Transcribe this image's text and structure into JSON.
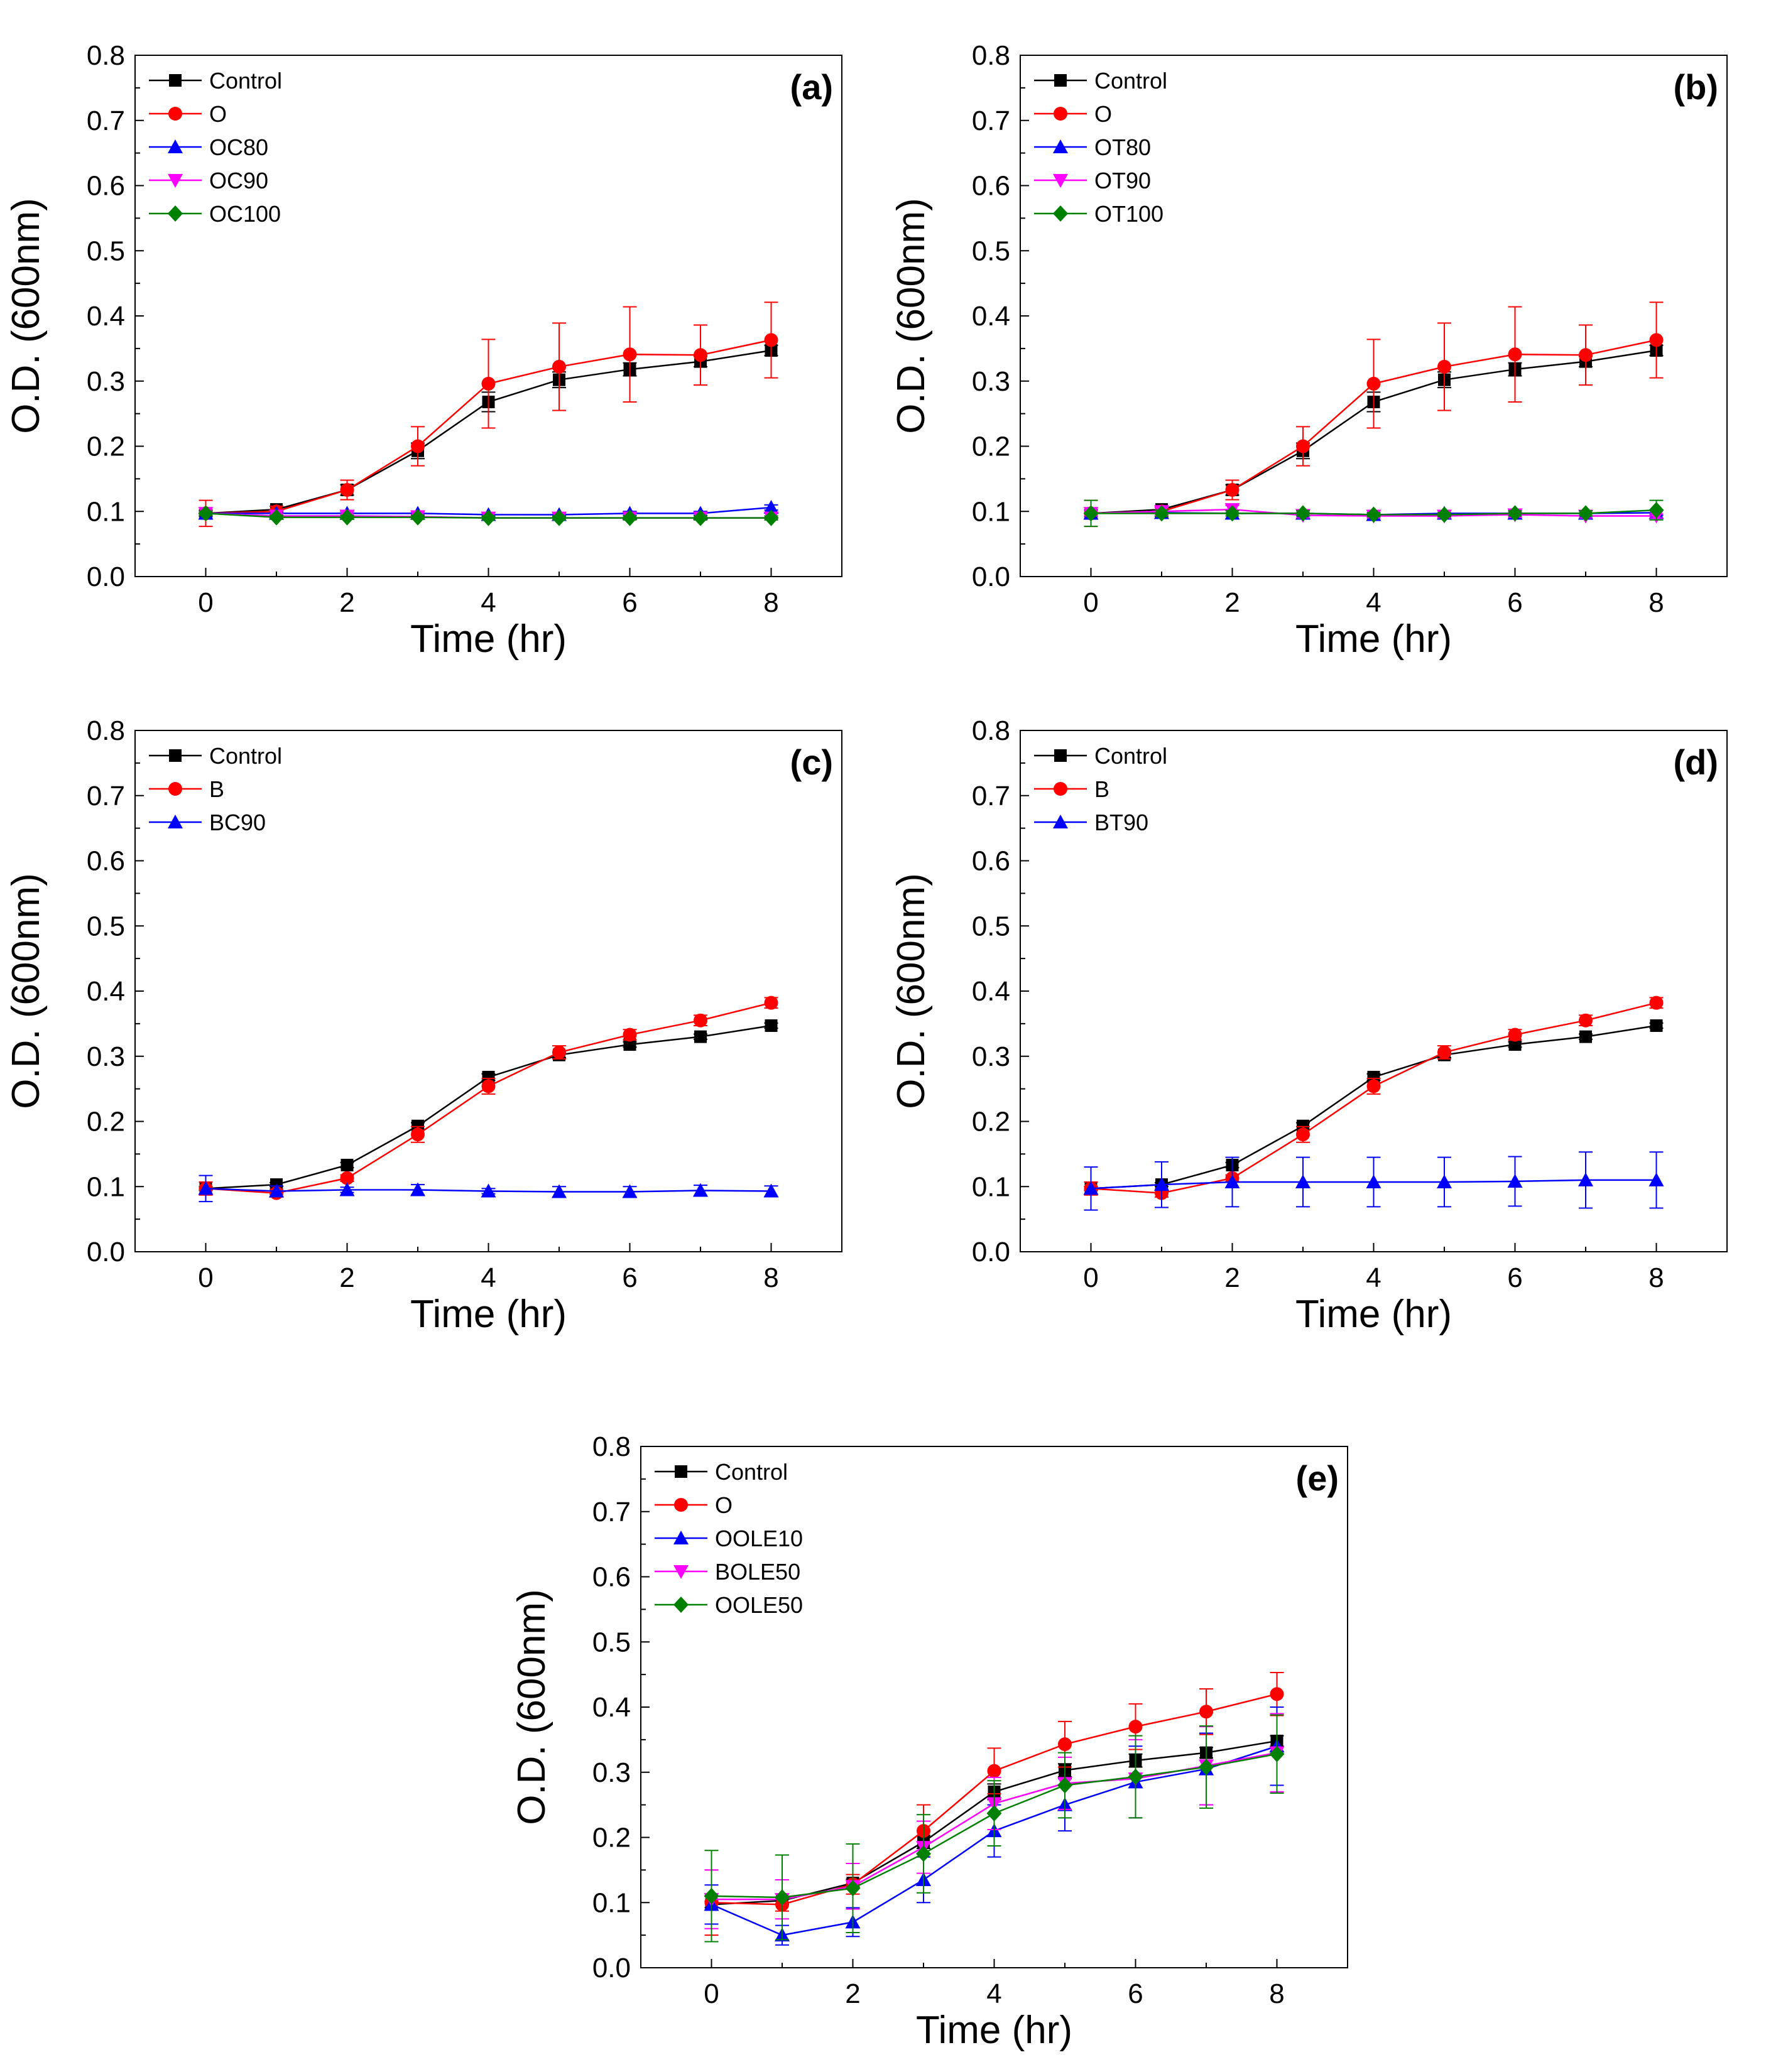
{
  "colors": {
    "Control": "#000000",
    "O": "#ff0000",
    "B": "#ff0000",
    "blue": "#0000ff",
    "magenta": "#ff00ff",
    "green": "#008000"
  },
  "chart_data": [
    {
      "type": "line",
      "panel_label": "(a)",
      "xlabel": "Time (hr)",
      "ylabel": "O.D. (600nm)",
      "xlim": [
        -1,
        9
      ],
      "ylim": [
        0.0,
        0.8
      ],
      "xticks": [
        "0",
        "2",
        "4",
        "6",
        "8"
      ],
      "yticks": [
        "0.0",
        "0.1",
        "0.2",
        "0.3",
        "0.4",
        "0.5",
        "0.6",
        "0.7",
        "0.8"
      ],
      "legend_position": "top-left",
      "x": [
        0,
        1,
        2,
        3,
        4,
        5,
        6,
        7,
        8
      ],
      "series": [
        {
          "name": "Control",
          "color": "#000000",
          "marker": "square",
          "values": [
            0.097,
            0.103,
            0.133,
            0.193,
            0.268,
            0.302,
            0.318,
            0.33,
            0.347
          ],
          "errors": [
            0.005,
            0.005,
            0.008,
            0.012,
            0.015,
            0.012,
            0.01,
            0.008,
            0.008
          ]
        },
        {
          "name": "O",
          "color": "#ff0000",
          "marker": "circle",
          "values": [
            0.097,
            0.1,
            0.133,
            0.2,
            0.296,
            0.322,
            0.341,
            0.34,
            0.363
          ],
          "errors": [
            0.02,
            0.008,
            0.015,
            0.03,
            0.068,
            0.067,
            0.073,
            0.046,
            0.058
          ]
        },
        {
          "name": "OC80",
          "color": "#0000ff",
          "marker": "triangle-up",
          "values": [
            0.097,
            0.097,
            0.097,
            0.097,
            0.095,
            0.095,
            0.097,
            0.097,
            0.106
          ],
          "errors": [
            0.003,
            0.003,
            0.003,
            0.003,
            0.003,
            0.003,
            0.003,
            0.003,
            0.004
          ]
        },
        {
          "name": "OC90",
          "color": "#ff00ff",
          "marker": "triangle-down",
          "values": [
            0.097,
            0.093,
            0.093,
            0.092,
            0.09,
            0.09,
            0.09,
            0.09,
            0.09
          ],
          "errors": [
            0.003,
            0.003,
            0.003,
            0.003,
            0.003,
            0.003,
            0.003,
            0.003,
            0.003
          ]
        },
        {
          "name": "OC100",
          "color": "#008000",
          "marker": "diamond",
          "values": [
            0.097,
            0.091,
            0.091,
            0.091,
            0.09,
            0.09,
            0.09,
            0.09,
            0.09
          ],
          "errors": [
            0.003,
            0.003,
            0.003,
            0.003,
            0.003,
            0.003,
            0.003,
            0.003,
            0.003
          ]
        }
      ]
    },
    {
      "type": "line",
      "panel_label": "(b)",
      "xlabel": "Time (hr)",
      "ylabel": "O.D. (600nm)",
      "xlim": [
        -1,
        9
      ],
      "ylim": [
        0.0,
        0.8
      ],
      "xticks": [
        "0",
        "2",
        "4",
        "6",
        "8"
      ],
      "yticks": [
        "0.0",
        "0.1",
        "0.2",
        "0.3",
        "0.4",
        "0.5",
        "0.6",
        "0.7",
        "0.8"
      ],
      "legend_position": "top-left",
      "x": [
        0,
        1,
        2,
        3,
        4,
        5,
        6,
        7,
        8
      ],
      "series": [
        {
          "name": "Control",
          "color": "#000000",
          "marker": "square",
          "values": [
            0.097,
            0.103,
            0.133,
            0.193,
            0.268,
            0.302,
            0.318,
            0.33,
            0.347
          ],
          "errors": [
            0.005,
            0.005,
            0.008,
            0.012,
            0.015,
            0.012,
            0.01,
            0.008,
            0.008
          ]
        },
        {
          "name": "O",
          "color": "#ff0000",
          "marker": "circle",
          "values": [
            0.097,
            0.1,
            0.133,
            0.2,
            0.296,
            0.322,
            0.341,
            0.34,
            0.363
          ],
          "errors": [
            0.02,
            0.008,
            0.015,
            0.03,
            0.068,
            0.067,
            0.073,
            0.046,
            0.058
          ]
        },
        {
          "name": "OT80",
          "color": "#0000ff",
          "marker": "triangle-up",
          "values": [
            0.097,
            0.098,
            0.097,
            0.097,
            0.095,
            0.097,
            0.097,
            0.097,
            0.098
          ],
          "errors": [
            0.004,
            0.004,
            0.004,
            0.004,
            0.003,
            0.004,
            0.004,
            0.004,
            0.004
          ]
        },
        {
          "name": "OT90",
          "color": "#ff00ff",
          "marker": "triangle-down",
          "values": [
            0.097,
            0.1,
            0.103,
            0.094,
            0.093,
            0.093,
            0.095,
            0.093,
            0.093
          ],
          "errors": [
            0.004,
            0.006,
            0.006,
            0.004,
            0.003,
            0.003,
            0.004,
            0.003,
            0.003
          ]
        },
        {
          "name": "OT100",
          "color": "#008000",
          "marker": "diamond",
          "values": [
            0.097,
            0.097,
            0.097,
            0.097,
            0.095,
            0.095,
            0.097,
            0.097,
            0.102
          ],
          "errors": [
            0.02,
            0.005,
            0.004,
            0.004,
            0.003,
            0.003,
            0.004,
            0.004,
            0.015
          ]
        }
      ]
    },
    {
      "type": "line",
      "panel_label": "(c)",
      "xlabel": "Time (hr)",
      "ylabel": "O.D. (600nm)",
      "xlim": [
        -1,
        9
      ],
      "ylim": [
        0.0,
        0.8
      ],
      "xticks": [
        "0",
        "2",
        "4",
        "6",
        "8"
      ],
      "yticks": [
        "0.0",
        "0.1",
        "0.2",
        "0.3",
        "0.4",
        "0.5",
        "0.6",
        "0.7",
        "0.8"
      ],
      "legend_position": "top-left",
      "x": [
        0,
        1,
        2,
        3,
        4,
        5,
        6,
        7,
        8
      ],
      "series": [
        {
          "name": "Control",
          "color": "#000000",
          "marker": "square",
          "values": [
            0.097,
            0.103,
            0.133,
            0.193,
            0.268,
            0.302,
            0.318,
            0.33,
            0.347
          ],
          "errors": [
            0.003,
            0.003,
            0.004,
            0.005,
            0.005,
            0.004,
            0.004,
            0.004,
            0.004
          ]
        },
        {
          "name": "B",
          "color": "#ff0000",
          "marker": "circle",
          "values": [
            0.097,
            0.09,
            0.113,
            0.18,
            0.254,
            0.306,
            0.333,
            0.355,
            0.382
          ],
          "errors": [
            0.01,
            0.006,
            0.005,
            0.012,
            0.012,
            0.01,
            0.008,
            0.008,
            0.008
          ]
        },
        {
          "name": "BC90",
          "color": "#0000ff",
          "marker": "triangle-up",
          "values": [
            0.097,
            0.093,
            0.095,
            0.095,
            0.093,
            0.092,
            0.092,
            0.094,
            0.093
          ],
          "errors": [
            0.02,
            0.008,
            0.004,
            0.008,
            0.004,
            0.008,
            0.008,
            0.008,
            0.008
          ]
        }
      ]
    },
    {
      "type": "line",
      "panel_label": "(d)",
      "xlabel": "Time (hr)",
      "ylabel": "O.D. (600nm)",
      "xlim": [
        -1,
        9
      ],
      "ylim": [
        0.0,
        0.8
      ],
      "xticks": [
        "0",
        "2",
        "4",
        "6",
        "8"
      ],
      "yticks": [
        "0.0",
        "0.1",
        "0.2",
        "0.3",
        "0.4",
        "0.5",
        "0.6",
        "0.7",
        "0.8"
      ],
      "legend_position": "top-left",
      "x": [
        0,
        1,
        2,
        3,
        4,
        5,
        6,
        7,
        8
      ],
      "series": [
        {
          "name": "Control",
          "color": "#000000",
          "marker": "square",
          "values": [
            0.097,
            0.103,
            0.133,
            0.193,
            0.268,
            0.302,
            0.318,
            0.33,
            0.347
          ],
          "errors": [
            0.003,
            0.003,
            0.004,
            0.005,
            0.005,
            0.004,
            0.004,
            0.004,
            0.004
          ]
        },
        {
          "name": "B",
          "color": "#ff0000",
          "marker": "circle",
          "values": [
            0.097,
            0.09,
            0.113,
            0.18,
            0.254,
            0.306,
            0.333,
            0.355,
            0.382
          ],
          "errors": [
            0.01,
            0.006,
            0.005,
            0.012,
            0.012,
            0.01,
            0.008,
            0.008,
            0.008
          ]
        },
        {
          "name": "BT90",
          "color": "#0000ff",
          "marker": "triangle-up",
          "values": [
            0.097,
            0.103,
            0.107,
            0.107,
            0.107,
            0.107,
            0.108,
            0.11,
            0.11
          ],
          "errors": [
            0.033,
            0.035,
            0.038,
            0.038,
            0.038,
            0.038,
            0.038,
            0.043,
            0.043
          ]
        }
      ]
    },
    {
      "type": "line",
      "panel_label": "(e)",
      "xlabel": "Time (hr)",
      "ylabel": "O.D. (600nm)",
      "xlim": [
        -1,
        9
      ],
      "ylim": [
        0.0,
        0.8
      ],
      "xticks": [
        "0",
        "2",
        "4",
        "6",
        "8"
      ],
      "yticks": [
        "0.0",
        "0.1",
        "0.2",
        "0.3",
        "0.4",
        "0.5",
        "0.6",
        "0.7",
        "0.8"
      ],
      "legend_position": "top-left",
      "x": [
        0,
        1,
        2,
        3,
        4,
        5,
        6,
        7,
        8
      ],
      "series": [
        {
          "name": "Control",
          "color": "#000000",
          "marker": "square",
          "values": [
            0.097,
            0.103,
            0.13,
            0.193,
            0.27,
            0.303,
            0.318,
            0.33,
            0.348
          ],
          "errors": [
            0.005,
            0.005,
            0.006,
            0.01,
            0.012,
            0.01,
            0.01,
            0.008,
            0.008
          ]
        },
        {
          "name": "O",
          "color": "#ff0000",
          "marker": "circle",
          "values": [
            0.1,
            0.097,
            0.128,
            0.21,
            0.302,
            0.343,
            0.37,
            0.393,
            0.42
          ],
          "errors": [
            0.05,
            0.01,
            0.015,
            0.04,
            0.035,
            0.035,
            0.035,
            0.035,
            0.033
          ]
        },
        {
          "name": "OOLE10",
          "color": "#0000ff",
          "marker": "triangle-up",
          "values": [
            0.097,
            0.05,
            0.07,
            0.135,
            0.21,
            0.25,
            0.285,
            0.305,
            0.34
          ],
          "errors": [
            0.03,
            0.015,
            0.022,
            0.035,
            0.04,
            0.04,
            0.055,
            0.055,
            0.06
          ]
        },
        {
          "name": "BOLE50",
          "color": "#ff00ff",
          "marker": "triangle-down",
          "values": [
            0.105,
            0.105,
            0.125,
            0.185,
            0.252,
            0.283,
            0.29,
            0.31,
            0.33
          ],
          "errors": [
            0.045,
            0.03,
            0.035,
            0.04,
            0.04,
            0.04,
            0.06,
            0.06,
            0.06
          ]
        },
        {
          "name": "OOLE50",
          "color": "#008000",
          "marker": "diamond",
          "values": [
            0.11,
            0.108,
            0.122,
            0.175,
            0.237,
            0.28,
            0.293,
            0.308,
            0.328
          ],
          "errors": [
            0.07,
            0.065,
            0.068,
            0.06,
            0.05,
            0.05,
            0.063,
            0.063,
            0.06
          ]
        }
      ]
    }
  ]
}
